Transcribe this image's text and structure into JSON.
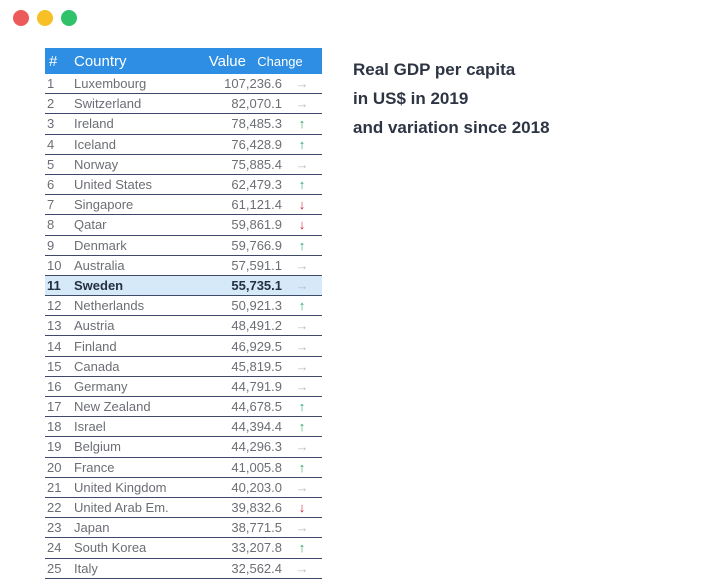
{
  "window": {
    "controls": [
      "close",
      "minimize",
      "maximize"
    ],
    "colors": {
      "close": "#ec5a5a",
      "minimize": "#f6c026",
      "maximize": "#2fc26b"
    }
  },
  "title": {
    "line1": "Real GDP per capita",
    "line2": "in US$ in 2019",
    "line3": "and variation since 2018"
  },
  "table": {
    "headers": {
      "rank": "#",
      "country": "Country",
      "value": "Value",
      "change": "Change"
    },
    "header_color": "#2e8ee3",
    "highlight_color": "#d6e9f8",
    "change_symbols": {
      "up": "↑",
      "down": "↓",
      "flat": "→"
    },
    "rows": [
      {
        "rank": "1",
        "country": "Luxembourg",
        "value": "107,236.6",
        "change": "flat"
      },
      {
        "rank": "2",
        "country": "Switzerland",
        "value": "82,070.1",
        "change": "flat"
      },
      {
        "rank": "3",
        "country": "Ireland",
        "value": "78,485.3",
        "change": "up"
      },
      {
        "rank": "4",
        "country": "Iceland",
        "value": "76,428.9",
        "change": "up"
      },
      {
        "rank": "5",
        "country": "Norway",
        "value": "75,885.4",
        "change": "flat"
      },
      {
        "rank": "6",
        "country": "United States",
        "value": "62,479.3",
        "change": "up"
      },
      {
        "rank": "7",
        "country": "Singapore",
        "value": "61,121.4",
        "change": "down"
      },
      {
        "rank": "8",
        "country": "Qatar",
        "value": "59,861.9",
        "change": "down"
      },
      {
        "rank": "9",
        "country": "Denmark",
        "value": "59,766.9",
        "change": "up"
      },
      {
        "rank": "10",
        "country": "Australia",
        "value": "57,591.1",
        "change": "flat"
      },
      {
        "rank": "11",
        "country": "Sweden",
        "value": "55,735.1",
        "change": "flat",
        "highlight": true
      },
      {
        "rank": "12",
        "country": "Netherlands",
        "value": "50,921.3",
        "change": "up"
      },
      {
        "rank": "13",
        "country": "Austria",
        "value": "48,491.2",
        "change": "flat"
      },
      {
        "rank": "14",
        "country": "Finland",
        "value": "46,929.5",
        "change": "flat"
      },
      {
        "rank": "15",
        "country": "Canada",
        "value": "45,819.5",
        "change": "flat"
      },
      {
        "rank": "16",
        "country": "Germany",
        "value": "44,791.9",
        "change": "flat"
      },
      {
        "rank": "17",
        "country": "New Zealand",
        "value": "44,678.5",
        "change": "up"
      },
      {
        "rank": "18",
        "country": "Israel",
        "value": "44,394.4",
        "change": "up"
      },
      {
        "rank": "19",
        "country": "Belgium",
        "value": "44,296.3",
        "change": "flat"
      },
      {
        "rank": "20",
        "country": "France",
        "value": "41,005.8",
        "change": "up"
      },
      {
        "rank": "21",
        "country": "United Kingdom",
        "value": "40,203.0",
        "change": "flat"
      },
      {
        "rank": "22",
        "country": "United Arab Em.",
        "value": "39,832.6",
        "change": "down"
      },
      {
        "rank": "23",
        "country": "Japan",
        "value": "38,771.5",
        "change": "flat"
      },
      {
        "rank": "24",
        "country": "South Korea",
        "value": "33,207.8",
        "change": "up"
      },
      {
        "rank": "25",
        "country": "Italy",
        "value": "32,562.4",
        "change": "flat"
      }
    ]
  }
}
